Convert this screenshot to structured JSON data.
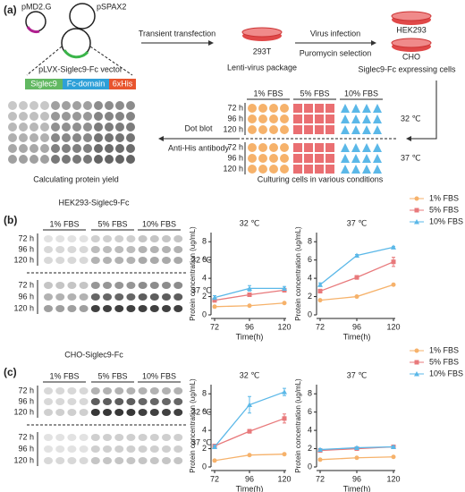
{
  "panel_a": {
    "label": "(a)",
    "plasmids": [
      "pMD2.G",
      "pSPAX2"
    ],
    "vector": "pLVX-Siglec9-Fc vector",
    "vector_parts": [
      "Siglec9",
      "Fc-domain",
      "6xHis"
    ],
    "step1": "Transient transfection",
    "cell_293t": "293T",
    "package": "Lenti-virus package",
    "step2": "Virus infection",
    "step3": "Puromycin selection",
    "cells": [
      "HEK293",
      "CHO"
    ],
    "expressing": "Siglec9-Fc expressing cells",
    "fbs": [
      "1% FBS",
      "5% FBS",
      "10% FBS"
    ],
    "hours": [
      "72 h",
      "96 h",
      "120 h"
    ],
    "temps": [
      "32 ℃",
      "37 ℃"
    ],
    "culture": "Culturing cells in various conditions",
    "step4": "Dot blot",
    "step5": "Anti-His antibody",
    "yield": "Calculating protein yield"
  },
  "panel_b": {
    "label": "(b)",
    "blot_title": "HEK293-Siglec9-Fc",
    "fbs": [
      "1% FBS",
      "5% FBS",
      "10% FBS"
    ],
    "hours": [
      "72 h",
      "96 h",
      "120 h"
    ],
    "temps": [
      "32 ℃",
      "37 ℃"
    ]
  },
  "panel_c": {
    "label": "(c)",
    "blot_title": "CHO-Siglec9-Fc",
    "fbs": [
      "1% FBS",
      "5% FBS",
      "10% FBS"
    ],
    "hours": [
      "72 h",
      "96 h",
      "120 h"
    ],
    "temps": [
      "32 ℃",
      "37 ℃"
    ]
  },
  "chart_data": [
    {
      "type": "line",
      "title": "32 ℃",
      "xlabel": "Time(h)",
      "ylabel": "Protein concentration (ug/mL)",
      "x": [
        72,
        96,
        120
      ],
      "xlim": [
        72,
        120
      ],
      "ylim": [
        0,
        9
      ],
      "xticks": [
        72,
        96,
        120
      ],
      "yticks": [
        0,
        2,
        4,
        6,
        8
      ],
      "legend": false,
      "series": [
        {
          "name": "1% FBS",
          "color": "#f6b26b",
          "marker": "circle",
          "values": [
            0.9,
            1.0,
            1.3
          ],
          "errors": [
            0.1,
            0.1,
            0.1
          ]
        },
        {
          "name": "5% FBS",
          "color": "#e8797b",
          "marker": "square",
          "values": [
            1.6,
            2.2,
            2.7
          ],
          "errors": [
            0.2,
            0.2,
            0.2
          ]
        },
        {
          "name": "10% FBS",
          "color": "#5bb8e8",
          "marker": "triangle",
          "values": [
            1.9,
            2.9,
            2.9
          ],
          "errors": [
            0.2,
            0.3,
            0.2
          ]
        }
      ]
    },
    {
      "type": "line",
      "title": "37 ℃",
      "xlabel": "Time(h)",
      "ylabel": "Protein concentration (ug/mL)",
      "x": [
        72,
        96,
        120
      ],
      "xlim": [
        72,
        120
      ],
      "ylim": [
        0,
        9
      ],
      "xticks": [
        72,
        96,
        120
      ],
      "yticks": [
        0,
        2,
        4,
        6,
        8
      ],
      "legend": true,
      "series": [
        {
          "name": "1% FBS",
          "color": "#f6b26b",
          "marker": "circle",
          "values": [
            1.6,
            2.0,
            3.3
          ],
          "errors": [
            0.1,
            0.1,
            0.1
          ]
        },
        {
          "name": "5% FBS",
          "color": "#e8797b",
          "marker": "square",
          "values": [
            2.6,
            4.1,
            5.8
          ],
          "errors": [
            0.2,
            0.2,
            0.5
          ]
        },
        {
          "name": "10% FBS",
          "color": "#5bb8e8",
          "marker": "triangle",
          "values": [
            3.3,
            6.5,
            7.4
          ],
          "errors": [
            0.2,
            0.1,
            0.1
          ]
        }
      ]
    },
    {
      "type": "line",
      "title": "32 ℃",
      "xlabel": "Time(h)",
      "ylabel": "Protein concentration (ug/mL)",
      "x": [
        72,
        96,
        120
      ],
      "xlim": [
        72,
        120
      ],
      "ylim": [
        0,
        9
      ],
      "xticks": [
        72,
        96,
        120
      ],
      "yticks": [
        0,
        2,
        4,
        6,
        8
      ],
      "legend": false,
      "series": [
        {
          "name": "1% FBS",
          "color": "#f6b26b",
          "marker": "circle",
          "values": [
            0.7,
            1.3,
            1.4
          ],
          "errors": [
            0.1,
            0.1,
            0.1
          ]
        },
        {
          "name": "5% FBS",
          "color": "#e8797b",
          "marker": "square",
          "values": [
            2.3,
            3.9,
            5.3
          ],
          "errors": [
            0.1,
            0.2,
            0.5
          ]
        },
        {
          "name": "10% FBS",
          "color": "#5bb8e8",
          "marker": "triangle",
          "values": [
            2.2,
            6.8,
            8.2
          ],
          "errors": [
            0.2,
            0.9,
            0.4
          ]
        }
      ]
    },
    {
      "type": "line",
      "title": "37 ℃",
      "xlabel": "Time(h)",
      "ylabel": "Protein concentration (ug/mL)",
      "x": [
        72,
        96,
        120
      ],
      "xlim": [
        72,
        120
      ],
      "ylim": [
        0,
        9
      ],
      "xticks": [
        72,
        96,
        120
      ],
      "yticks": [
        0,
        2,
        4,
        6,
        8
      ],
      "legend": true,
      "series": [
        {
          "name": "1% FBS",
          "color": "#f6b26b",
          "marker": "circle",
          "values": [
            0.8,
            1.0,
            1.1
          ],
          "errors": [
            0.1,
            0.1,
            0.1
          ]
        },
        {
          "name": "5% FBS",
          "color": "#e8797b",
          "marker": "square",
          "values": [
            1.8,
            2.0,
            2.2
          ],
          "errors": [
            0.1,
            0.1,
            0.1
          ]
        },
        {
          "name": "10% FBS",
          "color": "#5bb8e8",
          "marker": "triangle",
          "values": [
            1.9,
            2.1,
            2.2
          ],
          "errors": [
            0.1,
            0.1,
            0.1
          ]
        }
      ]
    }
  ]
}
